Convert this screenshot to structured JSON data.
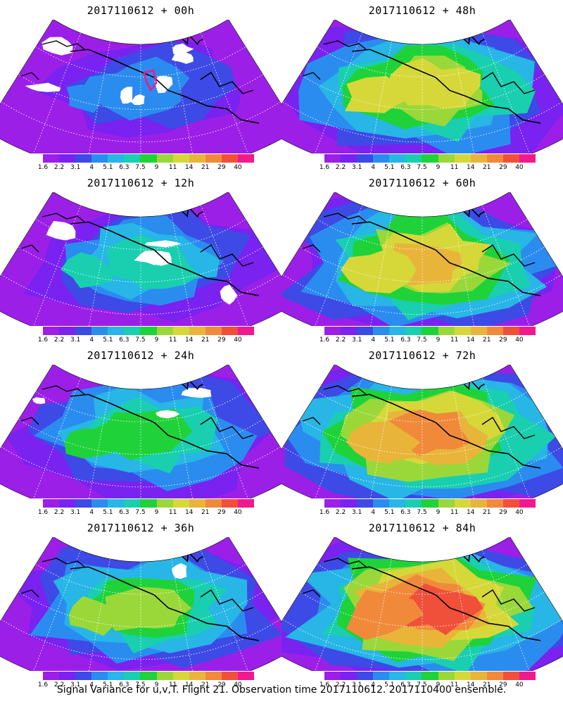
{
  "panels": [
    {
      "title": "2017110612 + 00h",
      "intensity": 0.15,
      "highlight": true
    },
    {
      "title": "2017110612 + 48h",
      "intensity": 0.7,
      "highlight": false
    },
    {
      "title": "2017110612 + 12h",
      "intensity": 0.35,
      "highlight": false
    },
    {
      "title": "2017110612 + 60h",
      "intensity": 0.8,
      "highlight": false
    },
    {
      "title": "2017110612 + 24h",
      "intensity": 0.45,
      "highlight": false
    },
    {
      "title": "2017110612 + 72h",
      "intensity": 0.88,
      "highlight": false
    },
    {
      "title": "2017110612 + 36h",
      "intensity": 0.58,
      "highlight": false
    },
    {
      "title": "2017110612 + 84h",
      "intensity": 0.95,
      "highlight": false
    }
  ],
  "colorbar": {
    "labels": [
      "1.6",
      "2.2",
      "3.1",
      "4",
      "5.1",
      "6.3",
      "7.5",
      "9",
      "11",
      "14",
      "21",
      "29",
      "40"
    ],
    "colors": [
      "#9c1fe8",
      "#7a22f0",
      "#3d4ae6",
      "#2b8cf0",
      "#27b6e6",
      "#19cfb0",
      "#1fd23a",
      "#9ad83a",
      "#d6d83a",
      "#e8b53a",
      "#f08a3a",
      "#f0503a",
      "#f01a8c"
    ]
  },
  "footer": "Signal Variance for u,v,T. Flight 21. Observation time 2017110612. 2017110400 ensemble."
}
